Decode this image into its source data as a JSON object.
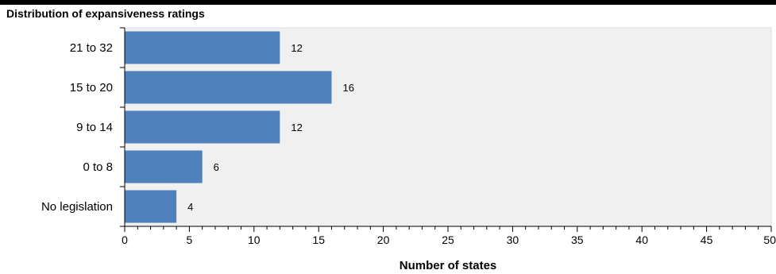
{
  "chart_data": {
    "type": "bar",
    "orientation": "horizontal",
    "title": "Distribution of expansiveness ratings",
    "categories": [
      "21 to 32",
      "15 to 20",
      "9 to 14",
      "0 to 8",
      "No legislation"
    ],
    "values": [
      12,
      16,
      12,
      6,
      4
    ],
    "xlabel": "Number of states",
    "ylabel": "",
    "xlim": [
      0,
      50
    ],
    "xticks": [
      0,
      5,
      10,
      15,
      20,
      25,
      30,
      35,
      40,
      45,
      50
    ],
    "grid": false,
    "colors": {
      "bar": "#4f81bd",
      "plot_bg": "#f0f0f0",
      "plot_border": "#d6dfea"
    }
  }
}
